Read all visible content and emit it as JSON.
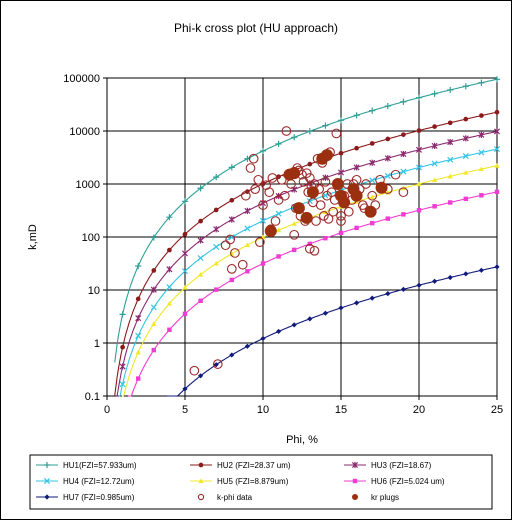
{
  "chart_data": {
    "type": "scatter",
    "title": "Phi-k cross plot (HU approach)",
    "xlabel": "Phi, %",
    "ylabel": "k,mD",
    "xlim": [
      0,
      25
    ],
    "ylim": [
      0.1,
      100000
    ],
    "y_scale": "log",
    "grid": true,
    "legend_position": "bottom",
    "x_ticks": [
      "0",
      "5",
      "10",
      "15",
      "20",
      "25"
    ],
    "y_ticks": [
      "0.1",
      "1",
      "10",
      "100",
      "1000",
      "10000",
      "100000"
    ],
    "series": [
      {
        "name": "HU1(FZI=57.933um)",
        "kind": "curve",
        "marker": "plus",
        "color": "#2e9f96",
        "fzi": 57.933
      },
      {
        "name": "HU2 (FZI=28.37 um)",
        "kind": "curve",
        "marker": "dot",
        "color": "#8b1a1a",
        "fzi": 28.37
      },
      {
        "name": "HU3 (FZI=18.67)",
        "kind": "curve",
        "marker": "star",
        "color": "#8b2a6e",
        "fzi": 18.67
      },
      {
        "name": "HU4 (FZI=12.72um)",
        "kind": "curve",
        "marker": "cross",
        "color": "#33c4e6",
        "fzi": 12.72
      },
      {
        "name": "HU5 (FZI=8.879um)",
        "kind": "curve",
        "marker": "triangle",
        "color": "#f0e82a",
        "fzi": 8.879
      },
      {
        "name": "HU6 (FZI=5.024 um)",
        "kind": "curve",
        "marker": "square",
        "color": "#f03cd2",
        "fzi": 5.024
      },
      {
        "name": "HU7 (FZI=0.985um)",
        "kind": "curve",
        "marker": "diamond",
        "color": "#101a7a",
        "fzi": 0.985
      },
      {
        "name": "k-phi data",
        "kind": "points",
        "marker": "open-circle",
        "color": "#9b2a2a",
        "points": [
          [
            5.6,
            0.3
          ],
          [
            7.1,
            0.4
          ],
          [
            7.6,
            70
          ],
          [
            7.9,
            90
          ],
          [
            8.0,
            25
          ],
          [
            8.2,
            50
          ],
          [
            8.7,
            30
          ],
          [
            8.9,
            600
          ],
          [
            9.2,
            2000
          ],
          [
            9.4,
            3000
          ],
          [
            9.5,
            800
          ],
          [
            9.7,
            1200
          ],
          [
            9.8,
            80
          ],
          [
            10.0,
            400
          ],
          [
            10.2,
            950
          ],
          [
            10.4,
            700
          ],
          [
            10.6,
            1300
          ],
          [
            10.8,
            200
          ],
          [
            11.0,
            500
          ],
          [
            11.2,
            1200
          ],
          [
            11.4,
            600
          ],
          [
            11.5,
            10000
          ],
          [
            11.7,
            1500
          ],
          [
            11.8,
            1000
          ],
          [
            12.0,
            1700
          ],
          [
            12.1,
            350
          ],
          [
            12.2,
            2000
          ],
          [
            12.3,
            1800
          ],
          [
            12.4,
            250
          ],
          [
            12.5,
            1500
          ],
          [
            12.6,
            1100
          ],
          [
            12.7,
            200
          ],
          [
            12.8,
            1600
          ],
          [
            12.9,
            700
          ],
          [
            13.0,
            1300
          ],
          [
            13.1,
            900
          ],
          [
            13.2,
            450
          ],
          [
            13.3,
            1000
          ],
          [
            13.4,
            200
          ],
          [
            13.5,
            3000
          ],
          [
            13.6,
            800
          ],
          [
            13.7,
            400
          ],
          [
            13.8,
            2500
          ],
          [
            13.9,
            250
          ],
          [
            14.0,
            1100
          ],
          [
            14.1,
            600
          ],
          [
            14.2,
            220
          ],
          [
            14.3,
            4000
          ],
          [
            14.4,
            700
          ],
          [
            14.5,
            300
          ],
          [
            14.6,
            500
          ],
          [
            14.7,
            9000
          ],
          [
            14.8,
            1000
          ],
          [
            15.0,
            250
          ],
          [
            15.2,
            600
          ],
          [
            15.4,
            1000
          ],
          [
            15.5,
            300
          ],
          [
            15.7,
            500
          ],
          [
            15.8,
            1000
          ],
          [
            16.0,
            1200
          ],
          [
            16.2,
            800
          ],
          [
            16.4,
            400
          ],
          [
            16.6,
            1000
          ],
          [
            17.0,
            600
          ],
          [
            17.2,
            400
          ],
          [
            17.5,
            1200
          ],
          [
            18.0,
            800
          ],
          [
            18.5,
            1500
          ],
          [
            19.0,
            700
          ],
          [
            13.3,
            55
          ],
          [
            13.0,
            60
          ],
          [
            10.5,
            140
          ],
          [
            12.0,
            110
          ],
          [
            15.0,
            200
          ],
          [
            16.5,
            350
          ]
        ]
      },
      {
        "name": "kr plugs",
        "kind": "points",
        "marker": "filled-circle",
        "color": "#9b3010",
        "points": [
          [
            10.5,
            130
          ],
          [
            11.7,
            1500
          ],
          [
            12.0,
            1600
          ],
          [
            12.3,
            350
          ],
          [
            12.8,
            230
          ],
          [
            13.2,
            700
          ],
          [
            13.8,
            3000
          ],
          [
            14.1,
            3500
          ],
          [
            14.8,
            1000
          ],
          [
            15.0,
            600
          ],
          [
            15.2,
            450
          ],
          [
            15.8,
            800
          ],
          [
            16.0,
            600
          ],
          [
            16.9,
            300
          ],
          [
            17.6,
            850
          ]
        ]
      }
    ]
  }
}
